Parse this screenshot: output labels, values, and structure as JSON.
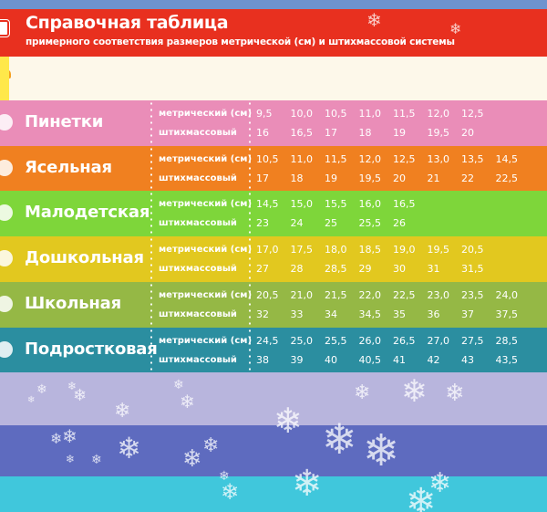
{
  "header": {
    "title": "Справочная таблица",
    "subtitle": "примерного соответствия размеров метрической (см) и штихмассовой системы"
  },
  "labels": {
    "metric": "метрический (см)",
    "stich": "штихмассовый"
  },
  "rows": [
    {
      "name": "Пинетки",
      "color": "#ea8db8",
      "icon": "bootie-icon",
      "metric": [
        "9,5",
        "10,0",
        "10,5",
        "11,0",
        "11,5",
        "12,0",
        "12,5"
      ],
      "stich": [
        "16",
        "16,5",
        "17",
        "18",
        "19",
        "19,5",
        "20"
      ]
    },
    {
      "name": "Ясельная",
      "color": "#f08020",
      "icon": "ball-icon",
      "metric": [
        "10,5",
        "11,0",
        "11,5",
        "12,0",
        "12,5",
        "13,0",
        "13,5",
        "14,5"
      ],
      "stich": [
        "17",
        "18",
        "19",
        "19,5",
        "20",
        "21",
        "22",
        "22,5"
      ]
    },
    {
      "name": "Малодетская",
      "color": "#7ed63a",
      "icon": "flower-icon",
      "metric": [
        "14,5",
        "15,0",
        "15,5",
        "16,0",
        "16,5"
      ],
      "stich": [
        "23",
        "24",
        "25",
        "25,5",
        "26"
      ]
    },
    {
      "name": "Дошкольная",
      "color": "#e2c81f",
      "icon": "rainbow-icon",
      "metric": [
        "17,0",
        "17,5",
        "18,0",
        "18,5",
        "19,0",
        "19,5",
        "20,5"
      ],
      "stich": [
        "27",
        "28",
        "28,5",
        "29",
        "30",
        "31",
        "31,5"
      ]
    },
    {
      "name": "Школьная",
      "color": "#95b845",
      "icon": "umbrella-icon",
      "metric": [
        "20,5",
        "21,0",
        "21,5",
        "22,0",
        "22,5",
        "23,0",
        "23,5",
        "24,0"
      ],
      "stich": [
        "32",
        "33",
        "34",
        "34,5",
        "35",
        "36",
        "37",
        "37,5"
      ]
    },
    {
      "name": "Подростковая",
      "color": "#2b8ea0",
      "icon": "cloud-icon",
      "metric": [
        "24,5",
        "25,0",
        "25,5",
        "26,0",
        "26,5",
        "27,0",
        "27,5",
        "28,5"
      ],
      "stich": [
        "38",
        "39",
        "40",
        "40,5",
        "41",
        "42",
        "43",
        "43,5"
      ]
    }
  ],
  "decor": {
    "bottom_bands": [
      "#b8b5dd",
      "#5e6bbf",
      "#40c7dc"
    ],
    "snowflake": "❄"
  }
}
